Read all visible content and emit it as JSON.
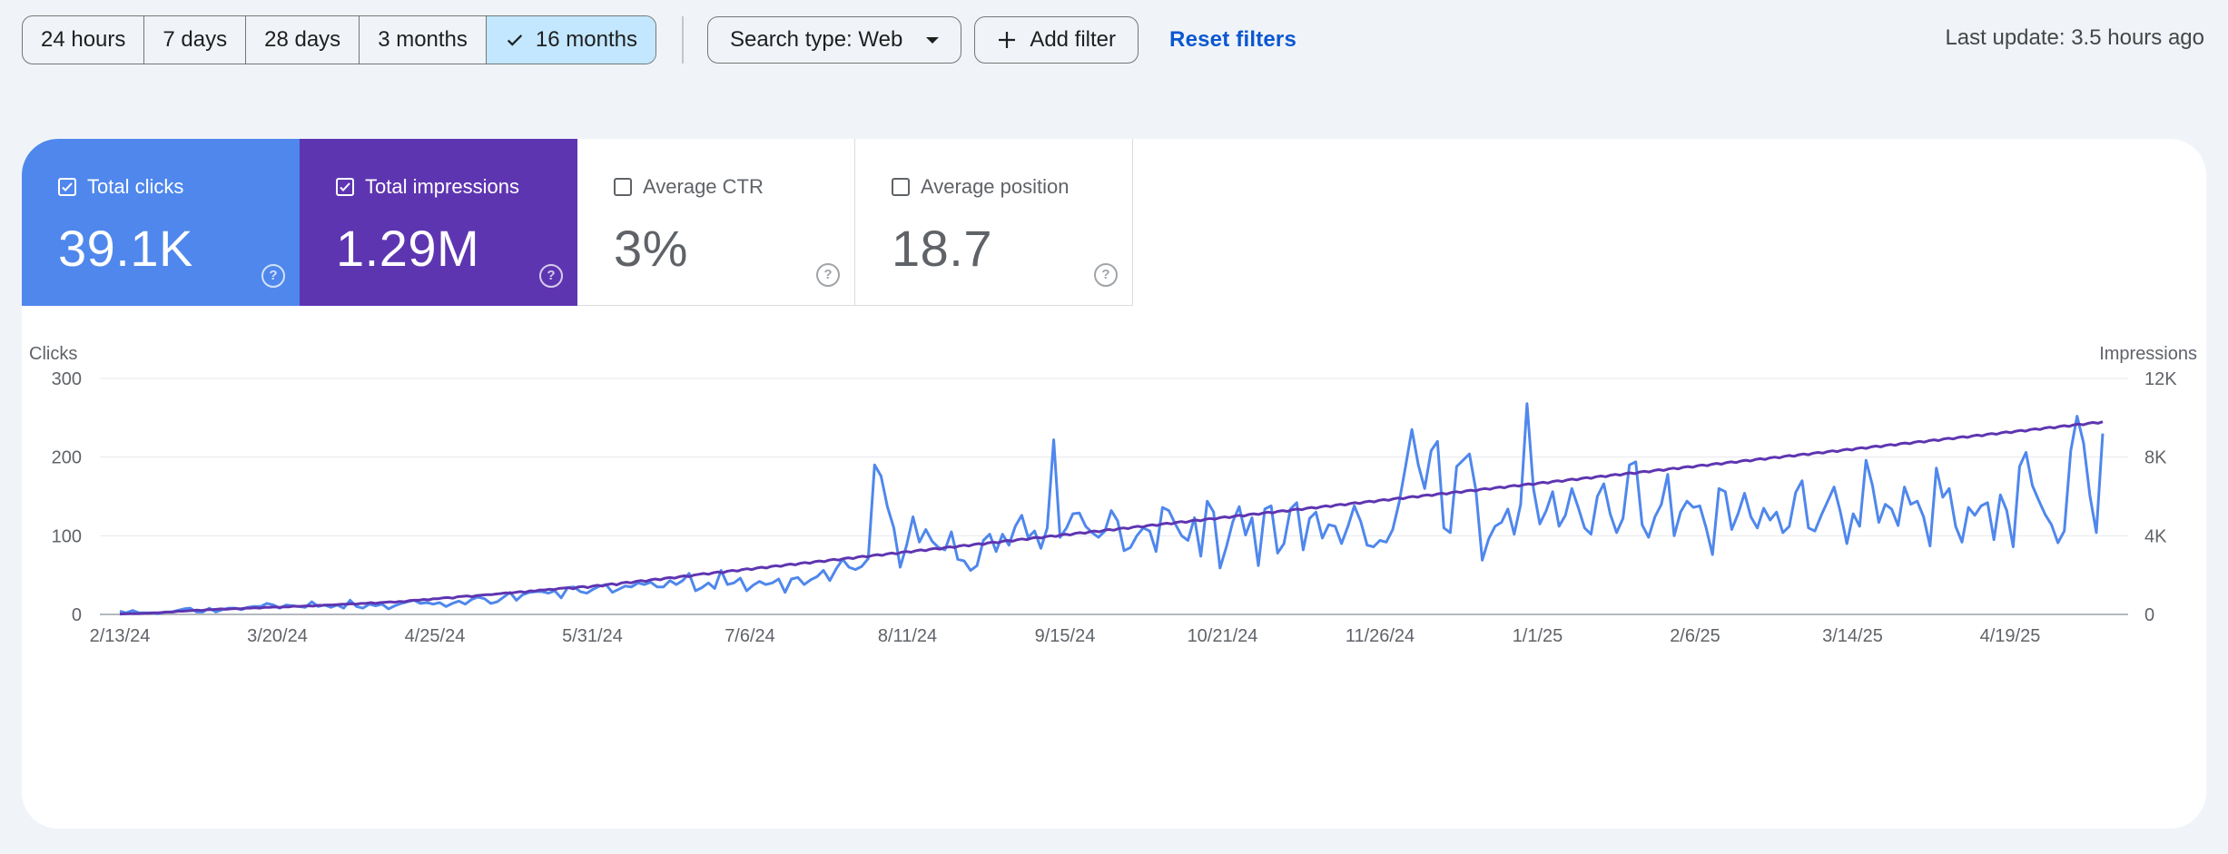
{
  "toolbar": {
    "ranges": [
      "24 hours",
      "7 days",
      "28 days",
      "3 months",
      "16 months"
    ],
    "active_range": "16 months",
    "search_type": "Search type: Web",
    "add_filter": "Add filter",
    "reset": "Reset filters"
  },
  "last_update": "Last update: 3.5 hours ago",
  "metrics": {
    "clicks": {
      "label": "Total clicks",
      "value": "39.1K",
      "checked": true,
      "color": "#4f87ec"
    },
    "impressions": {
      "label": "Total impressions",
      "value": "1.29M",
      "checked": true,
      "color": "#5e35b1"
    },
    "ctr": {
      "label": "Average CTR",
      "value": "3%",
      "checked": false
    },
    "position": {
      "label": "Average position",
      "value": "18.7",
      "checked": false
    }
  },
  "icons": {
    "checkmark": "check-icon",
    "dropdown": "caret-down-icon",
    "add": "plus-icon",
    "help": "help-circle-icon"
  },
  "chart_data": {
    "type": "line",
    "x_labels": [
      "2/13/24",
      "3/20/24",
      "4/25/24",
      "5/31/24",
      "7/6/24",
      "8/11/24",
      "9/15/24",
      "10/21/24",
      "11/26/24",
      "1/1/25",
      "2/6/25",
      "3/14/25",
      "4/19/25"
    ],
    "x_start": "2/12/24",
    "x_end": "5/31/25",
    "y_left": {
      "label": "Clicks",
      "ticks": [
        "0",
        "100",
        "200",
        "300"
      ],
      "min": 0,
      "max": 300
    },
    "y_right": {
      "label": "Impressions",
      "ticks": [
        "0",
        "4K",
        "8K",
        "12K"
      ],
      "min": 0,
      "max": 12000
    },
    "grid": true,
    "series": [
      {
        "name": "Total clicks",
        "axis": "left",
        "color": "#4f87ec",
        "values": [
          4,
          2,
          5,
          2,
          2,
          2,
          1,
          3,
          3,
          5,
          7,
          8,
          3,
          3,
          8,
          3,
          6,
          8,
          8,
          6,
          9,
          10,
          10,
          14,
          12,
          8,
          12,
          11,
          10,
          9,
          16,
          10,
          12,
          9,
          12,
          8,
          18,
          10,
          8,
          13,
          11,
          13,
          7,
          11,
          14,
          16,
          18,
          14,
          15,
          13,
          15,
          10,
          14,
          17,
          13,
          19,
          22,
          20,
          14,
          16,
          22,
          28,
          18,
          25,
          28,
          29,
          29,
          27,
          30,
          21,
          34,
          35,
          29,
          27,
          32,
          36,
          38,
          28,
          32,
          36,
          35,
          40,
          38,
          41,
          35,
          35,
          43,
          38,
          43,
          52,
          30,
          34,
          40,
          33,
          56,
          38,
          40,
          46,
          30,
          37,
          42,
          38,
          40,
          45,
          28,
          45,
          47,
          38,
          44,
          48,
          56,
          43,
          58,
          70,
          60,
          57,
          61,
          71,
          190,
          176,
          137,
          110,
          60,
          88,
          124,
          92,
          108,
          93,
          85,
          82,
          105,
          70,
          68,
          56,
          62,
          94,
          102,
          80,
          102,
          88,
          112,
          126,
          98,
          106,
          84,
          110,
          222,
          98,
          110,
          128,
          129,
          112,
          104,
          98,
          106,
          132,
          119,
          81,
          85,
          100,
          110,
          106,
          80,
          136,
          132,
          115,
          100,
          94,
          123,
          74,
          144,
          130,
          59,
          86,
          118,
          137,
          101,
          123,
          62,
          134,
          138,
          78,
          90,
          134,
          142,
          82,
          122,
          130,
          97,
          114,
          112,
          90,
          112,
          138,
          118,
          88,
          86,
          94,
          92,
          108,
          142,
          188,
          235,
          190,
          160,
          208,
          220,
          110,
          104,
          188,
          196,
          204,
          158,
          69,
          96,
          112,
          117,
          134,
          102,
          140,
          268,
          160,
          115,
          132,
          156,
          112,
          126,
          160,
          136,
          110,
          102,
          150,
          166,
          128,
          104,
          122,
          190,
          194,
          114,
          98,
          124,
          140,
          178,
          100,
          130,
          144,
          136,
          138,
          110,
          76,
          160,
          156,
          108,
          128,
          154,
          124,
          110,
          135,
          120,
          130,
          104,
          112,
          155,
          170,
          110,
          106,
          126,
          144,
          162,
          130,
          90,
          128,
          112,
          196,
          164,
          117,
          140,
          134,
          113,
          162,
          140,
          144,
          124,
          87,
          186,
          149,
          160,
          112,
          92,
          136,
          126,
          138,
          142,
          95,
          152,
          132,
          86,
          188,
          206,
          164,
          145,
          127,
          114,
          91,
          106,
          208,
          252,
          218,
          151,
          104,
          230
        ],
        "points_note": "daily values approximated"
      },
      {
        "name": "Total impressions",
        "axis": "right",
        "color": "#5e35b1",
        "values": [
          20,
          30,
          40,
          40,
          40,
          60,
          60,
          80,
          80,
          100,
          120,
          120,
          160,
          160,
          180,
          200,
          220,
          200,
          240,
          240,
          260,
          280,
          260,
          280,
          300,
          280,
          320,
          320,
          340,
          320,
          360,
          360,
          380,
          360,
          380,
          380,
          420,
          400,
          420,
          440,
          420,
          460,
          460,
          480,
          480,
          500,
          520,
          520,
          540,
          520,
          560,
          560,
          600,
          560,
          600,
          620,
          640,
          620,
          660,
          640,
          700,
          720,
          720,
          760,
          740,
          800,
          800,
          840,
          860,
          820,
          900,
          920,
          940,
          900,
          960,
          980,
          1000,
          1000,
          1040,
          1060,
          1100,
          1080,
          1120,
          1160,
          1120,
          1200,
          1180,
          1240,
          1240,
          1280,
          1260,
          1320,
          1340,
          1360,
          1300,
          1400,
          1420,
          1360,
          1440,
          1480,
          1440,
          1520,
          1560,
          1500,
          1600,
          1640,
          1600,
          1680,
          1720,
          1680,
          1760,
          1800,
          1760,
          1840,
          1880,
          1840,
          1920,
          1960,
          1920,
          2000,
          2040,
          2080,
          2040,
          2120,
          2160,
          2120,
          2200,
          2240,
          2200,
          2280,
          2320,
          2280,
          2360,
          2400,
          2360,
          2440,
          2480,
          2440,
          2520,
          2560,
          2520,
          2600,
          2640,
          2600,
          2680,
          2720,
          2680,
          2760,
          2800,
          2760,
          2840,
          2880,
          2840,
          2920,
          2960,
          2920,
          3000,
          3040,
          3000,
          3080,
          3120,
          3080,
          3160,
          3200,
          3160,
          3240,
          3280,
          3240,
          3320,
          3360,
          3320,
          3400,
          3440,
          3400,
          3480,
          3520,
          3480,
          3560,
          3600,
          3560,
          3640,
          3680,
          3640,
          3720,
          3760,
          3720,
          3800,
          3840,
          3800,
          3880,
          3920,
          3880,
          3960,
          4000,
          3960,
          4040,
          4080,
          4040,
          4120,
          4160,
          4120,
          4200,
          4240,
          4200,
          4280,
          4320,
          4280,
          4360,
          4400,
          4360,
          4440,
          4480,
          4440,
          4520,
          4560,
          4520,
          4600,
          4640,
          4600,
          4680,
          4720,
          4680,
          4760,
          4800,
          4760,
          4840,
          4880,
          4840,
          4920,
          4960,
          4920,
          5000,
          5040,
          5000,
          5080,
          5120,
          5080,
          5160,
          5200,
          5160,
          5240,
          5280,
          5240,
          5320,
          5360,
          5320,
          5400,
          5440,
          5400,
          5480,
          5520,
          5480,
          5560,
          5600,
          5560,
          5640,
          5680,
          5640,
          5720,
          5760,
          5720,
          5800,
          5840,
          5800,
          5880,
          5920,
          5880,
          5960,
          6000,
          5960,
          6040,
          6080,
          6040,
          6120,
          6160,
          6120,
          6200,
          6240,
          6200,
          6280,
          6320,
          6280,
          6360,
          6400,
          6360,
          6440,
          6480,
          6440,
          6520,
          6560,
          6520,
          6600,
          6640,
          6600,
          6680,
          6720,
          6680,
          6760,
          6800,
          6760,
          6840,
          6880,
          6840,
          6920,
          6960,
          6920,
          7000,
          7040,
          7000,
          7080,
          7120,
          7080,
          7160,
          7200,
          7160,
          7240,
          7280,
          7240,
          7320,
          7360,
          7320,
          7400,
          7440,
          7400,
          7480,
          7520,
          7480,
          7560,
          7600,
          7560,
          7640,
          7680,
          7640,
          7720,
          7760,
          7720,
          7800,
          7840,
          7800,
          7880,
          7920,
          7880,
          7960,
          8000,
          7960,
          8040,
          8080,
          8040,
          8120,
          8160,
          8120,
          8200,
          8240,
          8200,
          8280,
          8320,
          8280,
          8360,
          8400,
          8360,
          8440,
          8480,
          8440,
          8520,
          8560,
          8520,
          8600,
          8640,
          8600,
          8680,
          8720,
          8680,
          8760,
          8800,
          8760,
          8840,
          8880,
          8840,
          8920,
          8960,
          8920,
          9000,
          9040,
          9000,
          9080,
          9120,
          9080,
          9160,
          9200,
          9160,
          9240,
          9280,
          9240,
          9320,
          9360,
          9320,
          9400,
          9440,
          9400,
          9480,
          9520,
          9480,
          9560,
          9600,
          9560,
          9640,
          9680,
          9640,
          9720,
          9760,
          9720,
          9800
        ]
      }
    ]
  }
}
